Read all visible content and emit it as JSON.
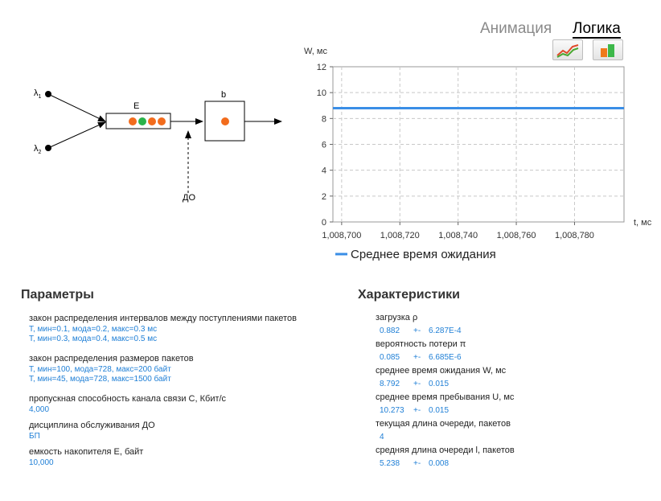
{
  "tabs": {
    "animation": "Анимация",
    "logic": "Логика"
  },
  "view_buttons": [
    "line-chart-icon",
    "bar-chart-icon"
  ],
  "diagram": {
    "source1": "λ",
    "source1_sub": "1",
    "source2": "λ",
    "source2_sub": "2",
    "buffer_label": "E",
    "server_label": "b",
    "discipline_label": "ДО",
    "queue_balls": [
      "#f26c1d",
      "#2ab34a",
      "#f26c1d",
      "#f26c1d"
    ],
    "server_ball": "#f26c1d"
  },
  "chart_data": {
    "type": "line",
    "ylabel": "W, мс",
    "xlabel": "t, мс",
    "ylim": [
      0,
      12
    ],
    "yticks": [
      "0",
      "2",
      "4",
      "6",
      "8",
      "10",
      "12"
    ],
    "xlim": [
      1008697,
      1008797
    ],
    "xticks": [
      1008700,
      1008720,
      1008740,
      1008760,
      1008780
    ],
    "xtick_labels": [
      "1,008,700",
      "1,008,720",
      "1,008,740",
      "1,008,760",
      "1,008,780"
    ],
    "grid": true,
    "legend_position": "bottom",
    "series": [
      {
        "name": "Среднее время ожидания",
        "color": "#3a8ee6",
        "x": [
          1008697,
          1008720,
          1008740,
          1008760,
          1008797
        ],
        "y": [
          8.8,
          8.8,
          8.8,
          8.8,
          8.8
        ]
      }
    ]
  },
  "params": {
    "title": "Параметры",
    "items": [
      {
        "label": "закон распределения интервалов между поступлениями пакетов",
        "values": [
          "T, мин=0.1, мода=0.2, макс=0.3 мс",
          "T, мин=0.3, мода=0.4, макс=0.5 мс"
        ]
      },
      {
        "label": "закон распределения размеров пакетов",
        "values": [
          "T, мин=100, мода=728, макс=200 байт",
          "T, мин=45, мода=728, макс=1500 байт"
        ]
      },
      {
        "label": "пропускная способность канала связи С, Кбит/с",
        "values": [
          "4,000"
        ]
      },
      {
        "label": "дисциплина обслуживания ДО",
        "values": [
          "БП"
        ]
      },
      {
        "label": "емкость накопителя Е, байт",
        "values": [
          "10,000"
        ]
      }
    ]
  },
  "stats": {
    "title": "Характеристики",
    "items": [
      {
        "label": "загрузка ρ",
        "value": "0.882",
        "pm": "+-",
        "err": "6.287E-4"
      },
      {
        "label": "вероятность потери π",
        "value": "0.085",
        "pm": "+-",
        "err": "6.685E-6"
      },
      {
        "label": "среднее время ожидания W, мс",
        "value": "8.792",
        "pm": "+-",
        "err": "0.015"
      },
      {
        "label": "среднее время пребывания U, мс",
        "value": "10.273",
        "pm": "+-",
        "err": "0.015"
      },
      {
        "label": "текущая длина очереди, пакетов",
        "value": "4",
        "pm": "",
        "err": ""
      },
      {
        "label": "средняя длина очереди l, пакетов",
        "value": "5.238",
        "pm": "+-",
        "err": "0.008"
      }
    ]
  }
}
